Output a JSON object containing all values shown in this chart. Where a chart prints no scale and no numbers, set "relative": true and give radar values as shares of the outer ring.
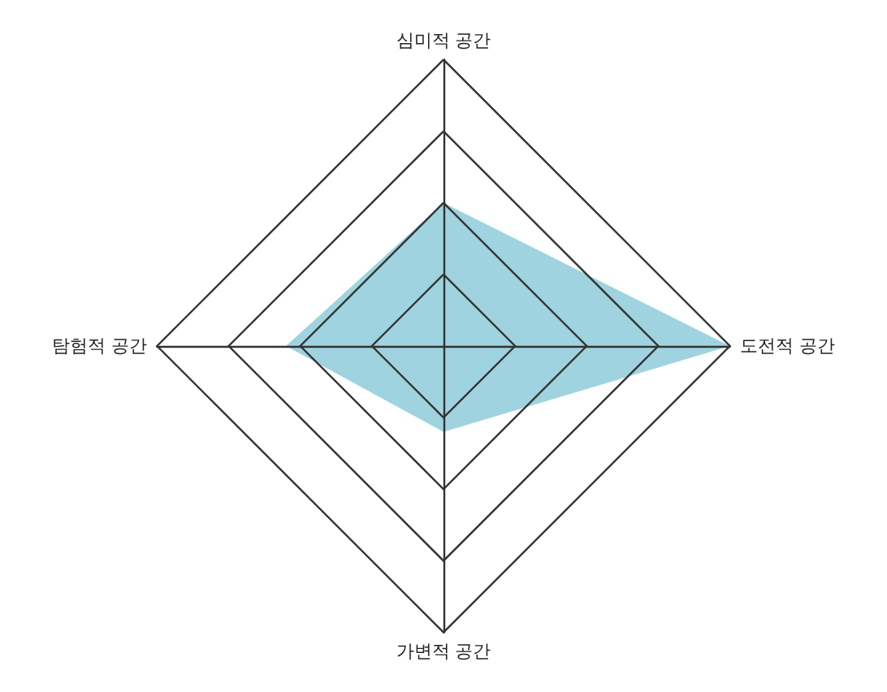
{
  "chart_data": {
    "type": "radar",
    "relative": true,
    "categories": [
      "심미적 공간",
      "도전적 공간",
      "가변적 공간",
      "탐험적 공간"
    ],
    "series": [
      {
        "color": "#9fd3e0",
        "values": [
          0.5,
          1,
          0.3,
          0.55
        ]
      }
    ]
  }
}
